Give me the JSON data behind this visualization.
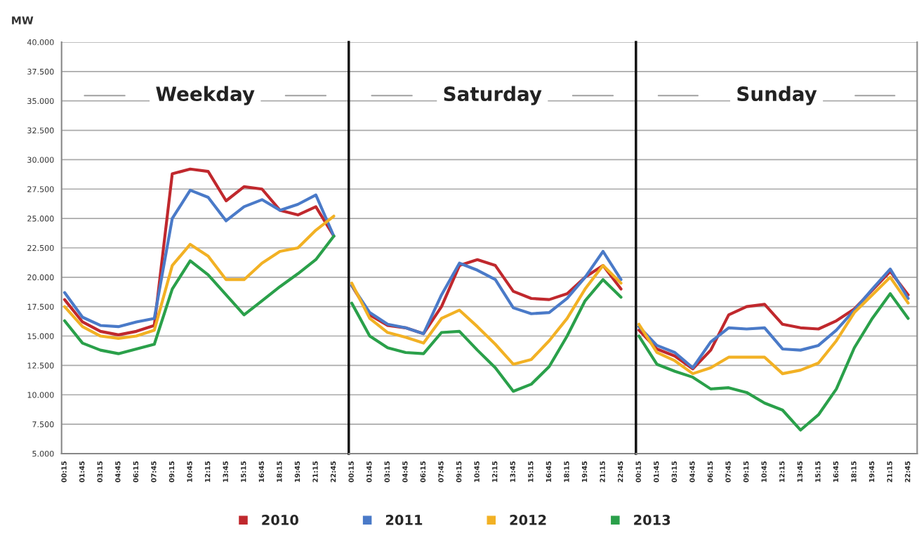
{
  "chart_data": [
    {
      "type": "line",
      "ylabel": "MW",
      "annotations": [
        "Weekday"
      ],
      "x": [
        0.25,
        1.75,
        3.25,
        4.75,
        6.25,
        7.75,
        9.25,
        10.75,
        12.25,
        13.75,
        15.25,
        16.75,
        18.25,
        19.75,
        21.25,
        22.75
      ],
      "series": [
        {
          "name": "2010",
          "color": "#c0282d",
          "values": [
            18100,
            16200,
            15400,
            15100,
            15400,
            15900,
            28800,
            29200,
            29000,
            26500,
            27700,
            27500,
            25700,
            25300,
            26000,
            23500
          ]
        },
        {
          "name": "2011",
          "color": "#4a7ac8",
          "values": [
            18700,
            16600,
            15900,
            15800,
            16200,
            16500,
            25000,
            27400,
            26800,
            24800,
            26000,
            26600,
            25700,
            26200,
            27000,
            23500
          ]
        },
        {
          "name": "2012",
          "color": "#f2b124",
          "values": [
            17500,
            15800,
            15000,
            14800,
            15000,
            15500,
            21000,
            22800,
            21800,
            19800,
            19800,
            21200,
            22200,
            22500,
            24000,
            25200
          ]
        },
        {
          "name": "2013",
          "color": "#2aa04a",
          "values": [
            16300,
            14400,
            13800,
            13500,
            13900,
            14300,
            19000,
            21400,
            20200,
            18500,
            16800,
            18000,
            19200,
            20300,
            21500,
            23500
          ]
        }
      ],
      "xlim": [
        0,
        24
      ],
      "xticks": [
        {
          "value": 0.25,
          "label": "00:15"
        },
        {
          "value": 1.75,
          "label": "01:45"
        },
        {
          "value": 3.25,
          "label": "03:15"
        },
        {
          "value": 4.75,
          "label": "04:45"
        },
        {
          "value": 6.25,
          "label": "06:15"
        },
        {
          "value": 7.75,
          "label": "07:45"
        },
        {
          "value": 9.25,
          "label": "09:15"
        },
        {
          "value": 10.75,
          "label": "10:45"
        },
        {
          "value": 12.25,
          "label": "12:15"
        },
        {
          "value": 13.75,
          "label": "13:45"
        },
        {
          "value": 15.25,
          "label": "15:15"
        },
        {
          "value": 16.75,
          "label": "16:45"
        },
        {
          "value": 18.25,
          "label": "18:15"
        },
        {
          "value": 19.75,
          "label": "19:45"
        },
        {
          "value": 21.25,
          "label": "21:15"
        },
        {
          "value": 22.75,
          "label": "22:45"
        }
      ],
      "ylim": [
        5000,
        40000
      ],
      "yticks": [
        {
          "value": 5000,
          "label": "5.000"
        },
        {
          "value": 7500,
          "label": "7.500"
        },
        {
          "value": 10000,
          "label": "10.000"
        },
        {
          "value": 12500,
          "label": "12.500"
        },
        {
          "value": 15000,
          "label": "15.000"
        },
        {
          "value": 17500,
          "label": "17.500"
        },
        {
          "value": 20000,
          "label": "20.000"
        },
        {
          "value": 22500,
          "label": "22.500"
        },
        {
          "value": 25000,
          "label": "25.000"
        },
        {
          "value": 27500,
          "label": "27.500"
        },
        {
          "value": 30000,
          "label": "30.000"
        },
        {
          "value": 32500,
          "label": "32.500"
        },
        {
          "value": 35000,
          "label": "35.000"
        },
        {
          "value": 37500,
          "label": "37.500"
        },
        {
          "value": 40000,
          "label": "40.000"
        }
      ],
      "grid": "y",
      "legend": "bottom",
      "marker": "none",
      "line_style": "solid"
    },
    {
      "type": "line",
      "annotations": [
        "Saturday"
      ],
      "x": [
        0.25,
        1.75,
        3.25,
        4.75,
        6.25,
        7.75,
        9.25,
        10.75,
        12.25,
        13.75,
        15.25,
        16.75,
        18.25,
        19.75,
        21.25,
        22.75
      ],
      "series": [
        {
          "color": "#c0282d",
          "values": [
            19300,
            16800,
            15900,
            15700,
            15200,
            17500,
            21000,
            21500,
            21000,
            18800,
            18200,
            18100,
            18600,
            20000,
            21000,
            19000
          ]
        },
        {
          "color": "#4a7ac8",
          "values": [
            19300,
            17000,
            16000,
            15700,
            15200,
            18500,
            21200,
            20600,
            19800,
            17400,
            16900,
            17000,
            18200,
            20000,
            22200,
            19800
          ]
        },
        {
          "color": "#f2b124",
          "values": [
            19500,
            16500,
            15300,
            14900,
            14400,
            16500,
            17200,
            15800,
            14300,
            12600,
            13000,
            14600,
            16500,
            19000,
            21000,
            19500
          ]
        },
        {
          "color": "#2aa04a",
          "values": [
            17800,
            15000,
            14000,
            13600,
            13500,
            15300,
            15400,
            13800,
            12300,
            10300,
            10900,
            12400,
            15000,
            18000,
            19800,
            18300
          ]
        }
      ],
      "xlim": [
        0,
        24
      ],
      "xticks": [
        {
          "value": 0.25,
          "label": "00:15"
        },
        {
          "value": 1.75,
          "label": "01:45"
        },
        {
          "value": 3.25,
          "label": "03:15"
        },
        {
          "value": 4.75,
          "label": "04:45"
        },
        {
          "value": 6.25,
          "label": "06:15"
        },
        {
          "value": 7.75,
          "label": "07:45"
        },
        {
          "value": 9.25,
          "label": "09:15"
        },
        {
          "value": 10.75,
          "label": "10:45"
        },
        {
          "value": 12.25,
          "label": "12:15"
        },
        {
          "value": 13.75,
          "label": "13:45"
        },
        {
          "value": 15.25,
          "label": "15:15"
        },
        {
          "value": 16.75,
          "label": "16:45"
        },
        {
          "value": 18.25,
          "label": "18:15"
        },
        {
          "value": 19.75,
          "label": "19:45"
        },
        {
          "value": 21.25,
          "label": "21:15"
        },
        {
          "value": 22.75,
          "label": "22:45"
        }
      ],
      "ylim": [
        5000,
        40000
      ],
      "yticks": [
        5000,
        7500,
        10000,
        12500,
        15000,
        17500,
        20000,
        22500,
        25000,
        27500,
        30000,
        32500,
        35000,
        37500,
        40000
      ],
      "tick_labels": "x",
      "grid": "y",
      "marker": "none",
      "line_style": "solid"
    },
    {
      "type": "line",
      "annotations": [
        "Sunday"
      ],
      "x": [
        0.25,
        1.75,
        3.25,
        4.75,
        6.25,
        7.75,
        9.25,
        10.75,
        12.25,
        13.75,
        15.25,
        16.75,
        18.25,
        19.75,
        21.25,
        22.75
      ],
      "series": [
        {
          "color": "#c0282d",
          "values": [
            15500,
            13900,
            13300,
            12200,
            13800,
            16800,
            17500,
            17700,
            16000,
            15700,
            15600,
            16300,
            17300,
            18900,
            20500,
            18500
          ]
        },
        {
          "color": "#4a7ac8",
          "values": [
            15800,
            14200,
            13600,
            12300,
            14500,
            15700,
            15600,
            15700,
            13900,
            13800,
            14200,
            15500,
            17200,
            19000,
            20700,
            18200
          ]
        },
        {
          "color": "#f2b124",
          "values": [
            16000,
            13600,
            12900,
            11800,
            12300,
            13200,
            13200,
            13200,
            11800,
            12100,
            12700,
            14600,
            17000,
            18500,
            20000,
            17800
          ]
        },
        {
          "color": "#2aa04a",
          "values": [
            15000,
            12600,
            12000,
            11500,
            10500,
            10600,
            10200,
            9300,
            8700,
            7000,
            8300,
            10500,
            14000,
            16500,
            18600,
            16500
          ]
        }
      ],
      "xlim": [
        0,
        23.5
      ],
      "xticks": [
        {
          "value": 0.25,
          "label": "00:15"
        },
        {
          "value": 1.75,
          "label": "01:45"
        },
        {
          "value": 3.25,
          "label": "03:15"
        },
        {
          "value": 4.75,
          "label": "04:45"
        },
        {
          "value": 6.25,
          "label": "06:15"
        },
        {
          "value": 7.75,
          "label": "07:45"
        },
        {
          "value": 9.25,
          "label": "09:15"
        },
        {
          "value": 10.75,
          "label": "10:45"
        },
        {
          "value": 12.25,
          "label": "12:15"
        },
        {
          "value": 13.75,
          "label": "13:45"
        },
        {
          "value": 15.25,
          "label": "15:15"
        },
        {
          "value": 16.75,
          "label": "16:45"
        },
        {
          "value": 18.25,
          "label": "18:15"
        },
        {
          "value": 19.75,
          "label": "19:45"
        },
        {
          "value": 21.25,
          "label": "21:15"
        },
        {
          "value": 22.75,
          "label": "22:45"
        }
      ],
      "ylim": [
        5000,
        40000
      ],
      "yticks": [
        5000,
        7500,
        10000,
        12500,
        15000,
        17500,
        20000,
        22500,
        25000,
        27500,
        30000,
        32500,
        35000,
        37500,
        40000
      ],
      "tick_labels": "x",
      "grid": "y",
      "marker": "none",
      "line_style": "solid"
    }
  ]
}
